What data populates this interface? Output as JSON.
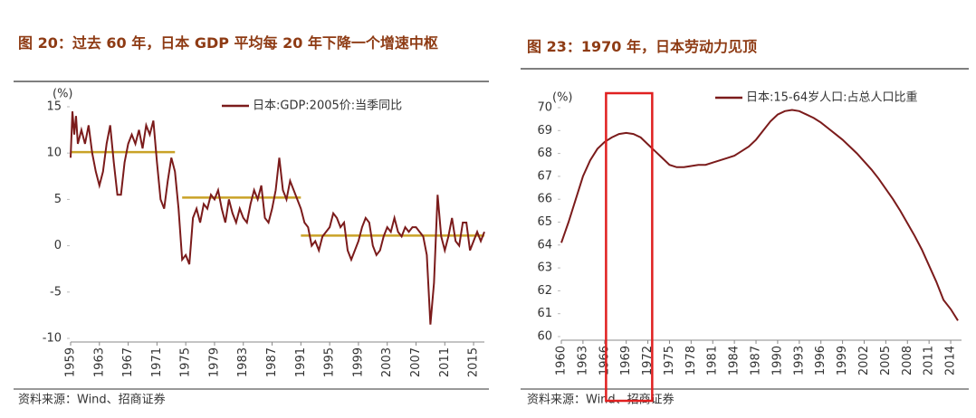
{
  "chart_data": [
    {
      "type": "line",
      "title": "图 20：过去 60 年，日本 GDP 平均每 20 年下降一个增速中枢",
      "y_unit_label": "(%)",
      "source": "资料来源：Wind、招商证券",
      "x": [
        1959.0,
        1959.25,
        1959.5,
        1959.75,
        1960.0,
        1960.5,
        1961.0,
        1961.5,
        1962.0,
        1962.5,
        1963.0,
        1963.5,
        1964.0,
        1964.5,
        1965.0,
        1965.5,
        1966.0,
        1966.5,
        1967.0,
        1967.5,
        1968.0,
        1968.5,
        1969.0,
        1969.5,
        1970.0,
        1970.5,
        1971.0,
        1971.5,
        1972.0,
        1972.5,
        1973.0,
        1973.5,
        1974.0,
        1974.5,
        1975.0,
        1975.5,
        1976.0,
        1976.5,
        1977.0,
        1977.5,
        1978.0,
        1978.5,
        1979.0,
        1979.5,
        1980.0,
        1980.5,
        1981.0,
        1981.5,
        1982.0,
        1982.5,
        1983.0,
        1983.5,
        1984.0,
        1984.5,
        1985.0,
        1985.5,
        1986.0,
        1986.5,
        1987.0,
        1987.5,
        1988.0,
        1988.5,
        1989.0,
        1989.5,
        1990.0,
        1990.5,
        1991.0,
        1991.5,
        1992.0,
        1992.5,
        1993.0,
        1993.5,
        1994.0,
        1994.5,
        1995.0,
        1995.5,
        1996.0,
        1996.5,
        1997.0,
        1997.5,
        1998.0,
        1998.5,
        1999.0,
        1999.5,
        2000.0,
        2000.5,
        2001.0,
        2001.5,
        2002.0,
        2002.5,
        2003.0,
        2003.5,
        2004.0,
        2004.5,
        2005.0,
        2005.5,
        2006.0,
        2006.5,
        2007.0,
        2007.5,
        2008.0,
        2008.5,
        2009.0,
        2009.5,
        2010.0,
        2010.5,
        2011.0,
        2011.5,
        2012.0,
        2012.5,
        2013.0,
        2013.5,
        2014.0,
        2014.5,
        2015.0,
        2015.5,
        2016.0,
        2016.5
      ],
      "series": [
        {
          "name": "日本:GDP:2005价:当季同比",
          "color": "#7b1b1b",
          "values": [
            9.5,
            14.5,
            12,
            14,
            11,
            12.5,
            11,
            13,
            10,
            8,
            6.5,
            8,
            11,
            13,
            9,
            5.5,
            5.5,
            9,
            11,
            12,
            11,
            12.5,
            10.5,
            13,
            12,
            13.5,
            9,
            5,
            4,
            7,
            9.5,
            8,
            4,
            -1.5,
            -1,
            -2,
            3,
            4,
            2.5,
            4.5,
            4,
            5.5,
            5,
            6,
            4,
            2.5,
            5,
            3.5,
            2.5,
            4,
            3,
            2.5,
            4.5,
            6,
            5,
            6.5,
            3,
            2.5,
            4,
            6,
            9.5,
            6,
            5,
            7,
            6,
            5,
            4,
            2.5,
            2,
            0,
            0.5,
            -0.5,
            1,
            1.5,
            2,
            3.5,
            3,
            2,
            2.5,
            -0.5,
            -1.5,
            -0.5,
            0.5,
            2,
            3,
            2.5,
            0,
            -1,
            -0.5,
            1,
            2,
            1.5,
            3,
            1.5,
            1,
            2,
            1.5,
            2,
            2,
            1.5,
            1,
            -1,
            -8.5,
            -4,
            5.5,
            1,
            -0.5,
            1,
            3,
            0.5,
            0,
            2.5,
            2.5,
            -0.5,
            0.5,
            1.5,
            0.5,
            1.5
          ]
        }
      ],
      "reference_lines": [
        {
          "x": [
            1959,
            1973.5
          ],
          "value": 10.1,
          "color": "#c9a227"
        },
        {
          "x": [
            1974.5,
            1991
          ],
          "value": 5.2,
          "color": "#c9a227"
        },
        {
          "x": [
            1991,
            2016.5
          ],
          "value": 1.1,
          "color": "#c9a227"
        }
      ],
      "xlim": [
        1959,
        2016.5
      ],
      "xticks": [
        1959,
        1963,
        1967,
        1971,
        1975,
        1979,
        1983,
        1987,
        1991,
        1995,
        1999,
        2003,
        2007,
        2011,
        2015
      ],
      "ylim": [
        -10,
        15
      ],
      "yticks": [
        -10,
        -5,
        0,
        5,
        10,
        15
      ]
    },
    {
      "type": "line",
      "title": "图 23：1970 年，日本劳动力见顶",
      "y_unit_label": "(%)",
      "source": "资料来源：Wind、招商证券",
      "x": [
        1960,
        1961,
        1962,
        1963,
        1964,
        1965,
        1966,
        1967,
        1968,
        1969,
        1970,
        1971,
        1972,
        1973,
        1974,
        1975,
        1976,
        1977,
        1978,
        1979,
        1980,
        1981,
        1982,
        1983,
        1984,
        1985,
        1986,
        1987,
        1988,
        1989,
        1990,
        1991,
        1992,
        1993,
        1994,
        1995,
        1996,
        1997,
        1998,
        1999,
        2000,
        2001,
        2002,
        2003,
        2004,
        2005,
        2006,
        2007,
        2008,
        2009,
        2010,
        2011,
        2012,
        2013,
        2014,
        2015
      ],
      "series": [
        {
          "name": "日本:15-64岁人口:占总人口比重",
          "color": "#7b1b1b",
          "values": [
            64.1,
            65,
            66,
            67,
            67.7,
            68.2,
            68.5,
            68.7,
            68.85,
            68.9,
            68.85,
            68.7,
            68.4,
            68.1,
            67.8,
            67.5,
            67.4,
            67.4,
            67.45,
            67.5,
            67.5,
            67.6,
            67.7,
            67.8,
            67.9,
            68.1,
            68.3,
            68.6,
            69.0,
            69.4,
            69.7,
            69.85,
            69.9,
            69.85,
            69.7,
            69.55,
            69.35,
            69.1,
            68.85,
            68.6,
            68.3,
            68.0,
            67.65,
            67.3,
            66.9,
            66.45,
            66.0,
            65.5,
            64.95,
            64.4,
            63.8,
            63.1,
            62.4,
            61.6,
            61.2,
            60.7
          ]
        }
      ],
      "highlight": {
        "x": [
          1966.2,
          1972.6
        ],
        "color": "#e02020"
      },
      "xlim": [
        1960,
        2015.5
      ],
      "xticks": [
        1960,
        1963,
        1966,
        1969,
        1972,
        1975,
        1978,
        1981,
        1984,
        1987,
        1990,
        1993,
        1996,
        1999,
        2002,
        2005,
        2008,
        2011,
        2014
      ],
      "ylim": [
        60,
        70
      ],
      "yticks": [
        60,
        61,
        62,
        63,
        64,
        65,
        66,
        67,
        68,
        69,
        70
      ]
    }
  ]
}
